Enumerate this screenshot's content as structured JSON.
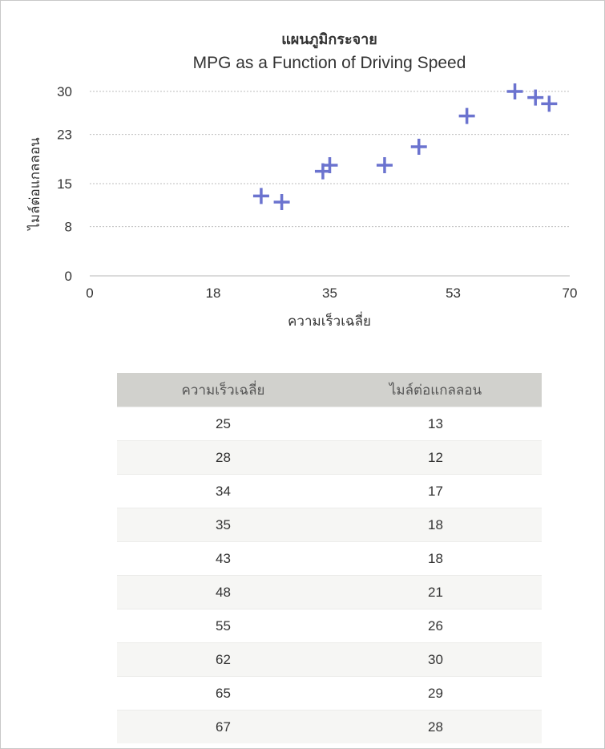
{
  "chart_data": {
    "type": "scatter",
    "title": "แผนภูมิกระจาย",
    "subtitle": "MPG as a Function of Driving Speed",
    "xlabel": "ความเร็วเฉลี่ย",
    "ylabel": "ไมล์ต่อแกลลอน",
    "xlim": [
      0,
      70
    ],
    "ylim": [
      0,
      30
    ],
    "xticks": [
      0,
      18,
      35,
      53,
      70
    ],
    "yticks": [
      0,
      8,
      15,
      23,
      30
    ],
    "grid": "horizontal-dotted",
    "marker": "plus",
    "color": "#6b73cf",
    "points": [
      {
        "x": 25,
        "y": 13
      },
      {
        "x": 28,
        "y": 12
      },
      {
        "x": 34,
        "y": 17
      },
      {
        "x": 35,
        "y": 18
      },
      {
        "x": 43,
        "y": 18
      },
      {
        "x": 48,
        "y": 21
      },
      {
        "x": 55,
        "y": 26
      },
      {
        "x": 62,
        "y": 30
      },
      {
        "x": 65,
        "y": 29
      },
      {
        "x": 67,
        "y": 28
      }
    ]
  },
  "table": {
    "headers": [
      "ความเร็วเฉลี่ย",
      "ไมล์ต่อแกลลอน"
    ],
    "rows": [
      [
        "25",
        "13"
      ],
      [
        "28",
        "12"
      ],
      [
        "34",
        "17"
      ],
      [
        "35",
        "18"
      ],
      [
        "43",
        "18"
      ],
      [
        "48",
        "21"
      ],
      [
        "55",
        "26"
      ],
      [
        "62",
        "30"
      ],
      [
        "65",
        "29"
      ],
      [
        "67",
        "28"
      ]
    ]
  }
}
